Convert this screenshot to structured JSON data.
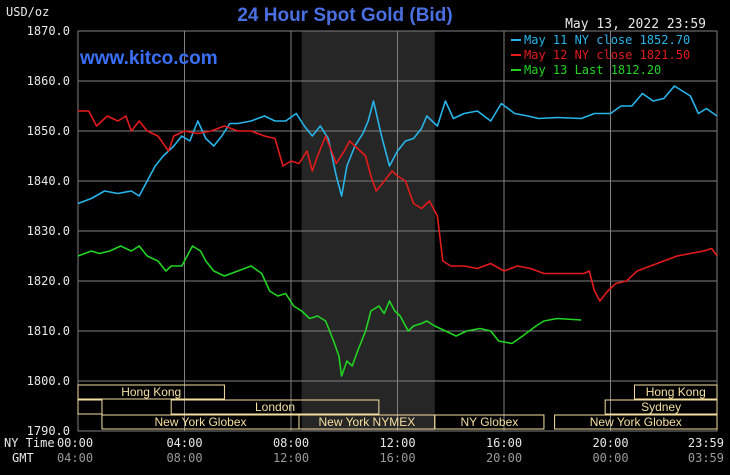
{
  "chart_data": {
    "type": "line",
    "title": "24 Hour Spot Gold (Bid)",
    "units_label": "USD/oz",
    "watermark": "www.kitco.com",
    "timestamp": "May 13, 2022 23:59",
    "ylim": [
      1790,
      1870
    ],
    "y_ticks": [
      "1870.0",
      "1860.0",
      "1850.0",
      "1840.0",
      "1830.0",
      "1820.0",
      "1810.0",
      "1800.0",
      "1790.0"
    ],
    "x_tick_values": [
      0,
      4,
      8,
      12,
      16,
      20,
      24
    ],
    "x_row_labels": [
      "NY Time",
      "GMT"
    ],
    "x_ticks_ny": [
      "00:00",
      "04:00",
      "08:00",
      "12:00",
      "16:00",
      "20:00",
      "23:59"
    ],
    "x_ticks_gmt": [
      "04:00",
      "08:00",
      "12:00",
      "16:00",
      "20:00",
      "00:00",
      "03:59"
    ],
    "grid": true,
    "legend_position": "top-right",
    "highlight_span_hours": [
      8.4,
      13.4
    ],
    "colors": {
      "background": "#000000",
      "grid": "#808080",
      "title": "#4a6fe0",
      "watermark": "#3a6ff5",
      "axis_text": "#e8e8e8",
      "market_box": "#f5dfa0",
      "highlight": "#262626"
    },
    "market_rows": [
      {
        "row": 0,
        "segments": [
          {
            "label": "Hong Kong",
            "start": 0.0,
            "end": 5.5
          },
          {
            "label": "Hong Kong",
            "start": 20.9,
            "end": 24.0
          }
        ]
      },
      {
        "row": 1,
        "segments": [
          {
            "label": "",
            "start": 0.0,
            "end": 0.9
          },
          {
            "label": "London",
            "start": 3.5,
            "end": 11.3
          },
          {
            "label": "Sydney",
            "start": 19.8,
            "end": 24.0
          }
        ]
      },
      {
        "row": 2,
        "segments": [
          {
            "label": "New York Globex",
            "start": 0.9,
            "end": 8.3
          },
          {
            "label": "New York NYMEX",
            "start": 8.3,
            "end": 13.4
          },
          {
            "label": "NY Globex",
            "start": 13.4,
            "end": 17.5
          },
          {
            "label": "New York Globex",
            "start": 17.9,
            "end": 24.0
          }
        ]
      }
    ],
    "series": [
      {
        "name": "May 11 NY close 1852.70",
        "color": "#27b5e9",
        "points": [
          [
            0,
            1835.5
          ],
          [
            0.5,
            1836.5
          ],
          [
            1,
            1838
          ],
          [
            1.5,
            1837.5
          ],
          [
            2,
            1838
          ],
          [
            2.3,
            1837
          ],
          [
            2.6,
            1840
          ],
          [
            2.9,
            1843
          ],
          [
            3.2,
            1845
          ],
          [
            3.6,
            1847
          ],
          [
            3.9,
            1849
          ],
          [
            4.2,
            1848
          ],
          [
            4.5,
            1852
          ],
          [
            4.8,
            1848.5
          ],
          [
            5.1,
            1847
          ],
          [
            5.4,
            1849
          ],
          [
            5.7,
            1851.5
          ],
          [
            6,
            1851.5
          ],
          [
            6.5,
            1852
          ],
          [
            7,
            1853
          ],
          [
            7.4,
            1852
          ],
          [
            7.8,
            1852
          ],
          [
            8.2,
            1853.5
          ],
          [
            8.5,
            1851
          ],
          [
            8.8,
            1849
          ],
          [
            9.1,
            1851
          ],
          [
            9.4,
            1848.5
          ],
          [
            9.7,
            1841
          ],
          [
            9.9,
            1837
          ],
          [
            10.1,
            1843
          ],
          [
            10.4,
            1847
          ],
          [
            10.7,
            1849.5
          ],
          [
            10.9,
            1852
          ],
          [
            11.1,
            1856
          ],
          [
            11.4,
            1849
          ],
          [
            11.7,
            1843
          ],
          [
            12,
            1846
          ],
          [
            12.3,
            1848
          ],
          [
            12.6,
            1848.5
          ],
          [
            12.9,
            1850.5
          ],
          [
            13.1,
            1853
          ],
          [
            13.5,
            1851
          ],
          [
            13.8,
            1856
          ],
          [
            14.1,
            1852.5
          ],
          [
            14.5,
            1853.5
          ],
          [
            15,
            1854
          ],
          [
            15.5,
            1852
          ],
          [
            15.9,
            1855.5
          ],
          [
            16.4,
            1853.5
          ],
          [
            16.9,
            1853
          ],
          [
            17.3,
            1852.5
          ],
          [
            18,
            1852.7
          ],
          [
            18.9,
            1852.5
          ],
          [
            19.4,
            1853.5
          ],
          [
            20,
            1853.5
          ],
          [
            20.4,
            1855
          ],
          [
            20.8,
            1855
          ],
          [
            21.2,
            1857.5
          ],
          [
            21.6,
            1856
          ],
          [
            22,
            1856.5
          ],
          [
            22.4,
            1859
          ],
          [
            22.7,
            1858
          ],
          [
            23,
            1857
          ],
          [
            23.3,
            1853.5
          ],
          [
            23.6,
            1854.5
          ],
          [
            24,
            1853
          ]
        ]
      },
      {
        "name": "May 12 NY close 1821.50",
        "color": "#e21b1b",
        "points": [
          [
            0,
            1854
          ],
          [
            0.4,
            1854
          ],
          [
            0.7,
            1851
          ],
          [
            1.1,
            1853
          ],
          [
            1.5,
            1852
          ],
          [
            1.8,
            1853
          ],
          [
            2,
            1850
          ],
          [
            2.3,
            1852
          ],
          [
            2.6,
            1850
          ],
          [
            3,
            1849
          ],
          [
            3.4,
            1846
          ],
          [
            3.6,
            1849
          ],
          [
            4,
            1850
          ],
          [
            4.5,
            1849.5
          ],
          [
            5,
            1850
          ],
          [
            5.5,
            1851
          ],
          [
            6,
            1850
          ],
          [
            6.5,
            1850
          ],
          [
            7,
            1849
          ],
          [
            7.4,
            1848.5
          ],
          [
            7.7,
            1843
          ],
          [
            8,
            1844
          ],
          [
            8.3,
            1843.5
          ],
          [
            8.6,
            1846
          ],
          [
            8.8,
            1842
          ],
          [
            9,
            1845
          ],
          [
            9.3,
            1849
          ],
          [
            9.7,
            1843.5
          ],
          [
            10,
            1846
          ],
          [
            10.2,
            1848
          ],
          [
            10.4,
            1847
          ],
          [
            10.8,
            1845
          ],
          [
            11,
            1841
          ],
          [
            11.2,
            1838
          ],
          [
            11.5,
            1840
          ],
          [
            11.8,
            1842
          ],
          [
            12,
            1841
          ],
          [
            12.3,
            1840
          ],
          [
            12.6,
            1835.5
          ],
          [
            12.9,
            1834.5
          ],
          [
            13.2,
            1836
          ],
          [
            13.5,
            1833
          ],
          [
            13.7,
            1824
          ],
          [
            14,
            1823
          ],
          [
            14.5,
            1823
          ],
          [
            15,
            1822.5
          ],
          [
            15.5,
            1823.5
          ],
          [
            16,
            1822
          ],
          [
            16.5,
            1823
          ],
          [
            17,
            1822.5
          ],
          [
            17.5,
            1821.5
          ],
          [
            18.5,
            1821.5
          ],
          [
            19,
            1821.5
          ],
          [
            19.2,
            1822
          ],
          [
            19.4,
            1818
          ],
          [
            19.6,
            1816
          ],
          [
            19.9,
            1818
          ],
          [
            20.2,
            1819.5
          ],
          [
            20.6,
            1820
          ],
          [
            21,
            1822
          ],
          [
            21.5,
            1823
          ],
          [
            22,
            1824
          ],
          [
            22.5,
            1825
          ],
          [
            23,
            1825.5
          ],
          [
            23.5,
            1826
          ],
          [
            23.8,
            1826.5
          ],
          [
            24,
            1825
          ]
        ]
      },
      {
        "name": "May 13 Last 1812.20",
        "color": "#21d421",
        "points": [
          [
            0,
            1825
          ],
          [
            0.5,
            1826
          ],
          [
            0.8,
            1825.5
          ],
          [
            1.2,
            1826
          ],
          [
            1.6,
            1827
          ],
          [
            2,
            1826
          ],
          [
            2.3,
            1827
          ],
          [
            2.6,
            1825
          ],
          [
            3,
            1824
          ],
          [
            3.3,
            1822
          ],
          [
            3.5,
            1823
          ],
          [
            3.9,
            1823
          ],
          [
            4.3,
            1827
          ],
          [
            4.6,
            1826
          ],
          [
            4.8,
            1824
          ],
          [
            5.1,
            1822
          ],
          [
            5.5,
            1821
          ],
          [
            6,
            1822
          ],
          [
            6.5,
            1823
          ],
          [
            6.9,
            1821.5
          ],
          [
            7.2,
            1818
          ],
          [
            7.5,
            1817
          ],
          [
            7.8,
            1817.5
          ],
          [
            8.1,
            1815
          ],
          [
            8.4,
            1814
          ],
          [
            8.7,
            1812.5
          ],
          [
            9,
            1813
          ],
          [
            9.3,
            1812
          ],
          [
            9.6,
            1808
          ],
          [
            9.8,
            1805
          ],
          [
            9.9,
            1801
          ],
          [
            10.1,
            1804
          ],
          [
            10.3,
            1803
          ],
          [
            10.5,
            1806
          ],
          [
            10.8,
            1810
          ],
          [
            11,
            1814
          ],
          [
            11.3,
            1815
          ],
          [
            11.5,
            1813.5
          ],
          [
            11.7,
            1816
          ],
          [
            11.9,
            1814
          ],
          [
            12.1,
            1813
          ],
          [
            12.4,
            1810
          ],
          [
            12.6,
            1811
          ],
          [
            12.9,
            1811.5
          ],
          [
            13.1,
            1812
          ],
          [
            13.4,
            1811
          ],
          [
            13.8,
            1810
          ],
          [
            14.2,
            1809
          ],
          [
            14.6,
            1810
          ],
          [
            15.1,
            1810.5
          ],
          [
            15.5,
            1810
          ],
          [
            15.8,
            1808
          ],
          [
            16.3,
            1807.5
          ],
          [
            16.7,
            1809
          ],
          [
            17.2,
            1811
          ],
          [
            17.5,
            1812
          ],
          [
            18,
            1812.5
          ],
          [
            18.9,
            1812.2
          ]
        ]
      }
    ]
  }
}
